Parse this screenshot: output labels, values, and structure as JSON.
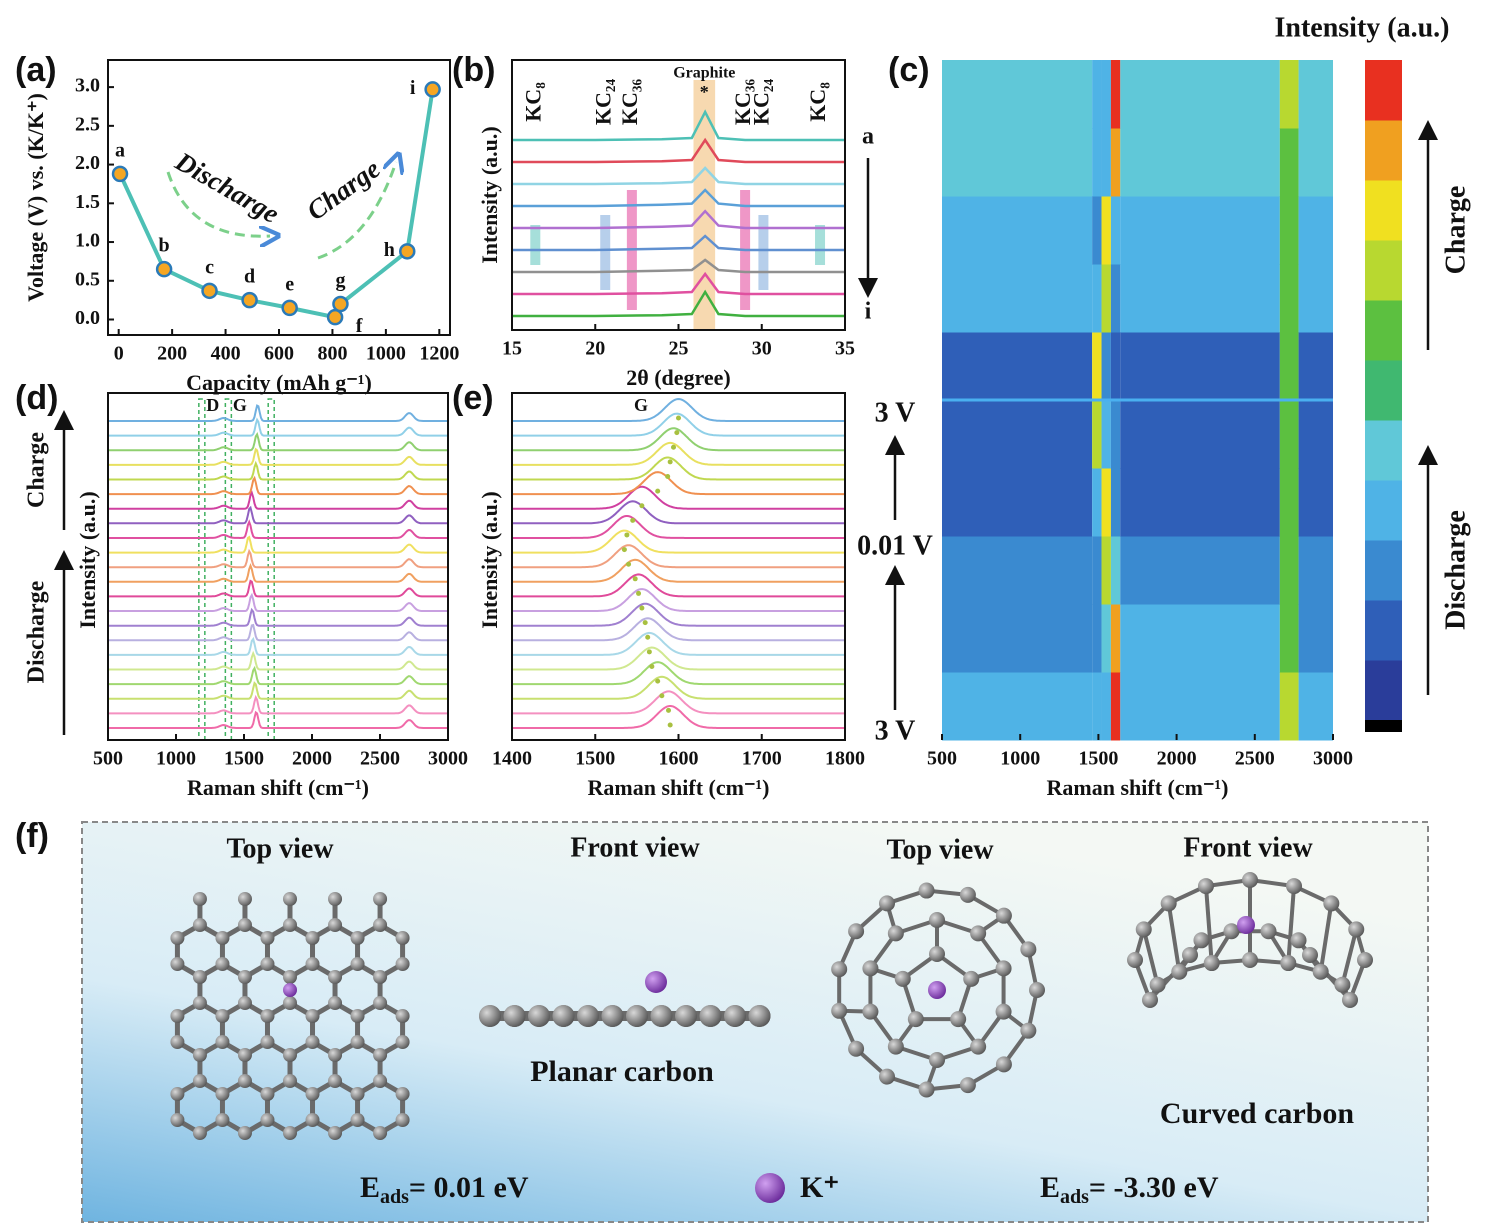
{
  "chart_data": [
    {
      "type": "line",
      "panel_label": "(a)",
      "x": [
        5,
        170,
        340,
        490,
        640,
        810,
        830,
        1080,
        1175
      ],
      "values": [
        1.88,
        0.65,
        0.37,
        0.25,
        0.15,
        0.03,
        0.2,
        0.88,
        2.97
      ],
      "point_labels": [
        "a",
        "b",
        "c",
        "d",
        "e",
        "f",
        "g",
        "h",
        "i"
      ],
      "color": "#4dc0b5",
      "marker_color": "#f5a623",
      "xlim": [
        -40,
        1240
      ],
      "ylim": [
        -0.2,
        3.35
      ],
      "xticks": [
        0,
        200,
        400,
        600,
        800,
        1000,
        1200
      ],
      "yticks": [
        {
          "value": 0,
          "label": "0.0"
        },
        0.5,
        {
          "value": 1,
          "label": "1.0"
        },
        1.5,
        {
          "value": 2,
          "label": "2.0"
        },
        2.5,
        {
          "value": 3,
          "label": "3.0"
        }
      ],
      "xlabel": "Capacity (mAh g⁻¹)",
      "ylabel": "Voltage (V) vs. (K/K⁺)",
      "annotations": [
        "Discharge",
        "Charge"
      ]
    },
    {
      "type": "stacked_line",
      "panel_label": "(b)",
      "x": [
        15,
        20,
        24,
        25.8,
        26.6,
        27.4,
        29,
        32,
        35
      ],
      "series": [
        {
          "color": "#4dc0b5",
          "values": [
            0,
            0,
            0.02,
            0.05,
            0.7,
            0.05,
            0,
            0,
            0
          ]
        },
        {
          "color": "#e04a5a",
          "values": [
            0,
            0,
            0.02,
            0.05,
            0.55,
            0.05,
            0,
            0,
            0
          ]
        },
        {
          "color": "#90d4e4",
          "values": [
            0,
            0,
            0.02,
            0.05,
            0.4,
            0.05,
            0,
            0,
            0
          ]
        },
        {
          "color": "#5aa0d8",
          "values": [
            0,
            0,
            0.03,
            0.06,
            0.4,
            0.06,
            0,
            0,
            0
          ]
        },
        {
          "color": "#b070d0",
          "values": [
            0,
            0,
            0.03,
            0.06,
            0.42,
            0.06,
            0,
            0,
            0
          ]
        },
        {
          "color": "#6090d0",
          "values": [
            0,
            0,
            0.03,
            0.05,
            0.35,
            0.05,
            0,
            0,
            0
          ]
        },
        {
          "color": "#909090",
          "values": [
            0,
            0,
            0.03,
            0.05,
            0.3,
            0.05,
            0,
            0,
            0
          ]
        },
        {
          "color": "#e050a0",
          "values": [
            0,
            0,
            0.02,
            0.05,
            0.5,
            0.05,
            0,
            0,
            0
          ]
        },
        {
          "color": "#40b040",
          "values": [
            0,
            0,
            0.02,
            0.05,
            0.6,
            0.05,
            0,
            0,
            0
          ]
        }
      ],
      "xlim": [
        15,
        35
      ],
      "xticks": [
        15,
        20,
        25,
        30,
        35
      ],
      "xlabel": "2θ (degree)",
      "ylabel": "Intensity (a.u.)",
      "graphite_range": [
        25.9,
        27.2
      ],
      "graphite_label": "Graphite",
      "graphite_marker": "*",
      "phases": [
        {
          "label": "KC₈",
          "positions": [
            16.4,
            33.5
          ],
          "color": "#4dc0b5"
        },
        {
          "label": "KC₂₄",
          "positions": [
            20.6,
            30.1
          ],
          "color": "#6fa0d8"
        },
        {
          "label": "KC₃₆",
          "positions": [
            22.2,
            29
          ],
          "color": "#e0308f"
        }
      ],
      "top_label": "a",
      "bottom_label": "i"
    },
    {
      "type": "heatmap",
      "panel_label": "(c)",
      "x": [
        500,
        1460,
        1520,
        1580,
        1640,
        2660,
        2780,
        3000
      ],
      "values": [
        [
          30,
          25,
          30,
          95,
          30,
          65,
          30
        ],
        [
          20,
          20,
          40,
          85,
          25,
          60,
          20
        ],
        [
          15,
          20,
          70,
          40,
          15,
          55,
          15
        ],
        [
          12,
          25,
          75,
          20,
          12,
          55,
          12
        ],
        [
          10,
          70,
          30,
          15,
          10,
          55,
          10
        ],
        [
          10,
          75,
          20,
          10,
          10,
          55,
          10
        ],
        [
          30,
          30,
          70,
          20,
          30,
          60,
          30
        ],
        [
          25,
          20,
          75,
          30,
          25,
          60,
          25
        ],
        [
          35,
          25,
          30,
          85,
          35,
          60,
          35
        ],
        [
          40,
          30,
          30,
          95,
          40,
          65,
          40
        ]
      ],
      "clim": [
        0,
        100
      ],
      "colormap": [
        "#2a3d9a",
        "#2f5fb8",
        "#3a8ad0",
        "#4fb3e6",
        "#60c8d8",
        "#40b870",
        "#5cc040",
        "#b8d830",
        "#f0e020",
        "#f0a020",
        "#e83020"
      ],
      "xlim": [
        500,
        3000
      ],
      "xticks": [
        500,
        1000,
        1500,
        2000,
        2500,
        3000
      ],
      "xlabel": "Raman shift (cm⁻¹)",
      "colorbar_title": "Intensity (a.u.)",
      "annotations": [
        "Charge",
        "Discharge"
      ]
    },
    {
      "type": "spectra",
      "panel_label": "(d)",
      "g_peaks": [
        1590,
        1588,
        1580,
        1575,
        1568,
        1565,
        1563,
        1560,
        1556,
        1552,
        1548,
        1540,
        1535,
        1538,
        1545,
        1556,
        1575,
        1587,
        1590,
        1594,
        1598,
        1600
      ],
      "colors": [
        "#f06aa8",
        "#f490c0",
        "#c8e070",
        "#a0d870",
        "#d0e890",
        "#a8d8e8",
        "#b8b0e0",
        "#a080d0",
        "#c8a0e0",
        "#e04a9a",
        "#f0a060",
        "#f0a080",
        "#f0e060",
        "#e050a0",
        "#9060c0",
        "#d040a0",
        "#f09050",
        "#c0d850",
        "#e8e060",
        "#90d070",
        "#90d0e8",
        "#70b0e0"
      ],
      "secondary_peaks": [
        1350,
        2715
      ],
      "guide_lines": [
        1190,
        1385,
        1700
      ],
      "band_labels": [
        {
          "text": "D",
          "x": 1270
        },
        {
          "text": "G",
          "x": 1470
        }
      ],
      "xlim": [
        500,
        3000
      ],
      "xticks": [
        500,
        1000,
        1500,
        2000,
        2500,
        3000
      ],
      "xlabel": "Raman shift (cm⁻¹)",
      "ylabel": "Intensity (a.u.)",
      "annotations": [
        "Charge",
        "Discharge"
      ]
    },
    {
      "type": "spectra",
      "panel_label": "(e)",
      "g_peaks": [
        1590,
        1588,
        1580,
        1575,
        1568,
        1565,
        1563,
        1560,
        1556,
        1552,
        1548,
        1540,
        1535,
        1538,
        1545,
        1556,
        1575,
        1587,
        1590,
        1594,
        1598,
        1600
      ],
      "colors": [
        "#f06aa8",
        "#f490c0",
        "#c8e070",
        "#a0d870",
        "#d0e890",
        "#a8d8e8",
        "#b8b0e0",
        "#a080d0",
        "#c8a0e0",
        "#e04a9a",
        "#f0a060",
        "#f0a080",
        "#f0e060",
        "#e050a0",
        "#9060c0",
        "#d040a0",
        "#f09050",
        "#c0d850",
        "#e8e060",
        "#90d070",
        "#90d0e8",
        "#70b0e0"
      ],
      "band_labels": [
        {
          "text": "G",
          "x": 1555
        }
      ],
      "xlim": [
        1400,
        1800
      ],
      "xticks": [
        1400,
        1500,
        1600,
        1700,
        1800
      ],
      "xlabel": "Raman shift (cm⁻¹)",
      "ylabel": "Intensity (a.u.)",
      "voltage_labels": [
        {
          "text": "3 V",
          "color": "#5ab0e0"
        },
        {
          "text": "0.01 V",
          "color": "#a8c040"
        },
        {
          "text": "3 V",
          "color": "#e0308f"
        }
      ]
    }
  ],
  "panel_f": {
    "label": "(f)",
    "views": [
      "Top view",
      "Front view",
      "Top view",
      "Front view"
    ],
    "captions": [
      "Planar carbon",
      "Curved carbon"
    ],
    "energies": [
      {
        "symbol": "E",
        "subscript": "ads",
        "text": "= 0.01 eV"
      },
      {
        "symbol": "E",
        "subscript": "ads",
        "text": "= -3.30 eV"
      }
    ],
    "legend": "K⁺"
  }
}
